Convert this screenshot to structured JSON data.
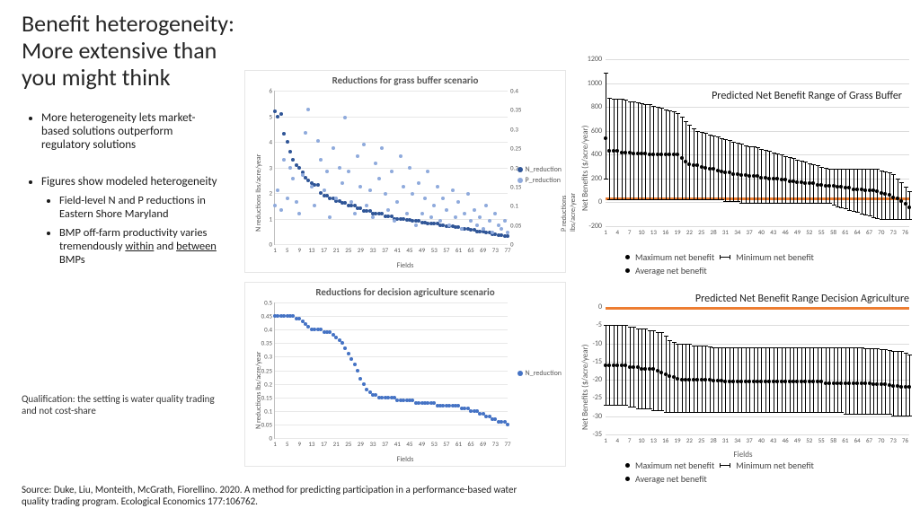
{
  "title": "Benefit heterogeneity:\nMore extensive than you might think",
  "bullets": {
    "b1": "More heterogeneity lets market-based solutions outperform regulatory solutions",
    "b2": "Figures show modeled heterogeneity",
    "b2a": "Field-level N and P reductions in Eastern Shore Maryland",
    "b2b_pre": "BMP off-farm productivity varies tremendously ",
    "b2b_u1": "within",
    "b2b_mid": " and ",
    "b2b_u2": "between",
    "b2b_post": " BMPs"
  },
  "qualification": "Qualification: the setting is water quality trading and not cost-share",
  "source": "Source: Duke, Liu, Monteith, McGrath, Fiorellino. 2020. A method for predicting participation in a performance-based water quality trading program. Ecological Economics 177:106762.",
  "scatter_top": {
    "title": "Reductions for grass buffer scenario",
    "ylabel": "N reductions lbs/acre/year",
    "y2label": "P reductions lbs/acre/year",
    "xlabel": "Fields",
    "ylim": [
      0,
      6
    ],
    "ytick_step": 1,
    "y2lim": [
      0,
      0.4
    ],
    "y2tick_step": 0.05,
    "xlim": [
      1,
      77
    ],
    "xticks": [
      1,
      5,
      9,
      13,
      17,
      21,
      25,
      29,
      33,
      37,
      41,
      45,
      49,
      53,
      57,
      61,
      65,
      69,
      73,
      77
    ],
    "series": {
      "N_reduction": {
        "color": "#2f5597",
        "label": "N_reduction"
      },
      "P_reduction": {
        "color": "#8faadc",
        "label": "P_reduction"
      }
    },
    "N": [
      5.2,
      5.0,
      5.1,
      4.3,
      4.0,
      3.6,
      3.3,
      3.1,
      3.0,
      2.8,
      2.6,
      2.5,
      2.4,
      2.3,
      2.3,
      2.0,
      1.9,
      1.9,
      1.8,
      1.8,
      1.7,
      1.7,
      1.6,
      1.6,
      1.5,
      1.5,
      1.5,
      1.4,
      1.4,
      1.3,
      1.3,
      1.3,
      1.2,
      1.2,
      1.2,
      1.2,
      1.1,
      1.1,
      1.1,
      1.0,
      1.0,
      1.0,
      1.0,
      0.95,
      0.95,
      0.9,
      0.9,
      0.9,
      0.85,
      0.85,
      0.8,
      0.8,
      0.8,
      0.8,
      0.75,
      0.75,
      0.7,
      0.7,
      0.7,
      0.65,
      0.65,
      0.6,
      0.6,
      0.6,
      0.55,
      0.55,
      0.5,
      0.5,
      0.5,
      0.45,
      0.45,
      0.4,
      0.4,
      0.35,
      0.35,
      0.3,
      0.3
    ],
    "P": [
      0.1,
      0.14,
      0.09,
      0.22,
      0.12,
      0.2,
      0.17,
      0.11,
      0.08,
      0.18,
      0.29,
      0.35,
      0.15,
      0.1,
      0.27,
      0.22,
      0.14,
      0.19,
      0.07,
      0.25,
      0.12,
      0.2,
      0.16,
      0.33,
      0.19,
      0.11,
      0.08,
      0.23,
      0.15,
      0.26,
      0.1,
      0.14,
      0.07,
      0.21,
      0.17,
      0.25,
      0.13,
      0.09,
      0.19,
      0.06,
      0.11,
      0.23,
      0.15,
      0.08,
      0.2,
      0.13,
      0.05,
      0.16,
      0.08,
      0.12,
      0.19,
      0.07,
      0.1,
      0.15,
      0.06,
      0.12,
      0.09,
      0.05,
      0.14,
      0.07,
      0.11,
      0.04,
      0.08,
      0.13,
      0.06,
      0.09,
      0.05,
      0.07,
      0.04,
      0.1,
      0.06,
      0.03,
      0.08,
      0.05,
      0.04,
      0.06,
      0.03
    ]
  },
  "scatter_bot": {
    "title": "Reductions for decision agriculture scenario",
    "ylabel": "N reductions lbs/acre/year",
    "xlabel": "Fields",
    "ylim": [
      0,
      0.5
    ],
    "ytick_step": 0.05,
    "xlim": [
      1,
      77
    ],
    "xticks": [
      1,
      5,
      9,
      13,
      17,
      21,
      25,
      29,
      33,
      37,
      41,
      45,
      49,
      53,
      57,
      61,
      65,
      69,
      73,
      77
    ],
    "series": {
      "N_reduction": {
        "color": "#4472c4",
        "label": "N_reduction"
      }
    },
    "N": [
      0.45,
      0.45,
      0.45,
      0.45,
      0.45,
      0.45,
      0.45,
      0.44,
      0.44,
      0.43,
      0.42,
      0.41,
      0.4,
      0.4,
      0.4,
      0.4,
      0.39,
      0.39,
      0.39,
      0.38,
      0.37,
      0.36,
      0.35,
      0.33,
      0.31,
      0.29,
      0.27,
      0.25,
      0.22,
      0.2,
      0.18,
      0.17,
      0.16,
      0.16,
      0.15,
      0.15,
      0.15,
      0.15,
      0.15,
      0.15,
      0.14,
      0.14,
      0.14,
      0.14,
      0.14,
      0.14,
      0.13,
      0.13,
      0.13,
      0.13,
      0.13,
      0.13,
      0.13,
      0.12,
      0.12,
      0.12,
      0.12,
      0.12,
      0.12,
      0.12,
      0.12,
      0.11,
      0.11,
      0.11,
      0.1,
      0.1,
      0.1,
      0.09,
      0.09,
      0.08,
      0.08,
      0.07,
      0.07,
      0.06,
      0.06,
      0.06,
      0.05
    ]
  },
  "range_top": {
    "title": "Predicted Net Benefit Range of Grass Buffer",
    "ylabel": "Net Benefits ($/acre/year)",
    "ylim": [
      -200,
      1200
    ],
    "ytick_step": 200,
    "xlim": [
      1,
      77
    ],
    "xticks": [
      1,
      4,
      7,
      10,
      13,
      16,
      19,
      22,
      25,
      28,
      31,
      34,
      37,
      40,
      43,
      46,
      49,
      52,
      55,
      58,
      61,
      64,
      67,
      70,
      73,
      76
    ],
    "orange_y": 40,
    "legend": {
      "max": "Maximum net benefit",
      "min": "Minimum net benefit",
      "avg": "Average net benefit"
    },
    "max": [
      1090,
      880,
      870,
      870,
      870,
      860,
      850,
      850,
      840,
      830,
      820,
      820,
      810,
      800,
      790,
      780,
      770,
      760,
      750,
      720,
      680,
      650,
      620,
      600,
      590,
      580,
      570,
      560,
      550,
      540,
      530,
      520,
      510,
      500,
      490,
      480,
      470,
      470,
      460,
      450,
      440,
      430,
      420,
      410,
      400,
      390,
      380,
      370,
      360,
      350,
      340,
      330,
      320,
      310,
      300,
      290,
      280,
      280,
      280,
      280,
      280,
      280,
      280,
      280,
      280,
      280,
      280,
      280,
      280,
      270,
      260,
      250,
      240,
      200,
      170,
      130,
      90
    ],
    "min": [
      190,
      20,
      20,
      20,
      20,
      20,
      20,
      20,
      20,
      20,
      20,
      20,
      20,
      20,
      20,
      20,
      20,
      20,
      20,
      20,
      20,
      20,
      20,
      20,
      20,
      20,
      20,
      20,
      20,
      20,
      0,
      0,
      0,
      0,
      -10,
      -10,
      -10,
      -10,
      -10,
      -10,
      -10,
      -10,
      -10,
      -10,
      -10,
      -10,
      -10,
      -10,
      -10,
      -10,
      -10,
      -10,
      -10,
      -10,
      -10,
      -10,
      -10,
      -30,
      -40,
      -50,
      -60,
      -70,
      -80,
      -90,
      -100,
      -110,
      -120,
      -130,
      -140,
      -150,
      -150,
      -150,
      -150,
      -150,
      -150,
      -150,
      -150
    ],
    "avg": [
      540,
      430,
      430,
      430,
      420,
      420,
      420,
      410,
      410,
      410,
      410,
      400,
      400,
      400,
      400,
      400,
      400,
      400,
      400,
      370,
      340,
      320,
      310,
      310,
      300,
      290,
      280,
      280,
      270,
      260,
      250,
      250,
      240,
      240,
      230,
      230,
      220,
      220,
      220,
      210,
      210,
      200,
      200,
      200,
      190,
      190,
      180,
      180,
      170,
      170,
      160,
      160,
      160,
      150,
      150,
      140,
      140,
      140,
      130,
      130,
      120,
      120,
      110,
      110,
      110,
      100,
      100,
      100,
      90,
      80,
      70,
      60,
      40,
      30,
      10,
      -10,
      -40
    ]
  },
  "range_bot": {
    "title": "Predicted Net Benefit Range Decision Agriculture",
    "ylabel": "Net Benefits ($/acre/year)",
    "xlabel": "Fields",
    "ylim": [
      -35,
      0
    ],
    "ytick_step": 5,
    "xlim": [
      1,
      77
    ],
    "xticks": [
      1,
      4,
      7,
      10,
      13,
      16,
      19,
      22,
      25,
      28,
      31,
      34,
      37,
      40,
      43,
      46,
      49,
      52,
      55,
      58,
      61,
      64,
      67,
      70,
      73,
      76
    ],
    "orange_y": 0,
    "legend": {
      "max": "Maximum net benefit",
      "min": "Minimum net benefit",
      "avg": "Average net benefit"
    },
    "max": [
      -5,
      -5,
      -5,
      -5,
      -5,
      -5,
      -5.5,
      -5.5,
      -6,
      -6,
      -6,
      -6.5,
      -6.5,
      -7,
      -7,
      -8,
      -9,
      -9.5,
      -10,
      -10,
      -10,
      -10,
      -10.5,
      -10.5,
      -10.5,
      -10.7,
      -10.8,
      -11,
      -11,
      -11,
      -11,
      -11,
      -11,
      -11,
      -11,
      -11,
      -11,
      -11,
      -11,
      -11,
      -11,
      -11,
      -11,
      -11,
      -11,
      -11,
      -11,
      -11,
      -11,
      -11,
      -11,
      -11,
      -11,
      -11,
      -11,
      -11,
      -11,
      -11,
      -11,
      -11,
      -11,
      -11,
      -11,
      -11.2,
      -11.2,
      -11.3,
      -11.3,
      -11.4,
      -11.4,
      -11.5,
      -11.6,
      -11.8,
      -12,
      -12,
      -12.2,
      -12.5,
      -13
    ],
    "min": [
      -27,
      -27,
      -27,
      -27,
      -27,
      -27,
      -27.5,
      -27.5,
      -28,
      -28,
      -28,
      -28,
      -28.5,
      -28.5,
      -28.5,
      -29,
      -29,
      -29,
      -29,
      -29,
      -29,
      -29,
      -29,
      -29,
      -29,
      -29,
      -29,
      -29,
      -29,
      -29,
      -29,
      -29,
      -29,
      -29,
      -29,
      -29,
      -29,
      -29,
      -29,
      -29,
      -29,
      -29,
      -29,
      -29,
      -29,
      -29,
      -29,
      -29,
      -29,
      -29,
      -29,
      -29,
      -29,
      -29,
      -29,
      -29,
      -29,
      -29,
      -29,
      -29,
      -29.5,
      -29.5,
      -29.5,
      -29.5,
      -29.5,
      -29.5,
      -29.5,
      -29.5,
      -29.5,
      -29.5,
      -29.5,
      -29.5,
      -30,
      -30,
      -30,
      -30,
      -30
    ],
    "avg": [
      -16,
      -16,
      -16,
      -16,
      -16,
      -16,
      -16.5,
      -16.5,
      -16.5,
      -17,
      -17,
      -17,
      -17,
      -17.5,
      -18,
      -18.5,
      -19,
      -19.3,
      -19.6,
      -20,
      -20,
      -20,
      -20,
      -20,
      -20,
      -20,
      -20,
      -20.3,
      -20.3,
      -20.3,
      -20.5,
      -20.5,
      -20.5,
      -20.5,
      -20.5,
      -20.5,
      -20.5,
      -20.5,
      -20.5,
      -20.5,
      -20.5,
      -20.5,
      -20.5,
      -20.5,
      -20.5,
      -20.5,
      -20.5,
      -20.5,
      -20.5,
      -20.5,
      -20.5,
      -20.5,
      -20.5,
      -20.5,
      -20.5,
      -21,
      -21,
      -21,
      -21,
      -21,
      -21,
      -21,
      -21,
      -21,
      -21,
      -21,
      -21,
      -21.2,
      -21.2,
      -21.3,
      -21.3,
      -21.5,
      -21.7,
      -21.7,
      -22,
      -22,
      -22
    ]
  }
}
